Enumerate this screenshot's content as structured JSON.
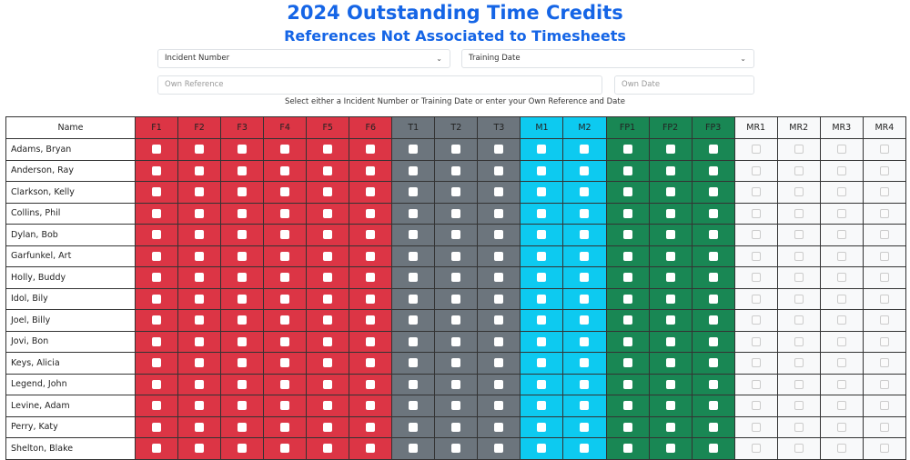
{
  "title": "2024 Outstanding Time Credits",
  "subtitle": "References Not Associated to Timesheets",
  "controls": {
    "incident": "Incident Number",
    "training": "Training Date",
    "own_ref_placeholder": "Own Reference",
    "own_date_placeholder": "Own Date",
    "hint": "Select either a Incident Number or Training Date or enter your Own Reference and Date"
  },
  "table": {
    "name_header": "Name",
    "groups": [
      {
        "color": "#dc3545",
        "columns": [
          "F1",
          "F2",
          "F3",
          "F4",
          "F5",
          "F6"
        ]
      },
      {
        "color": "#6c757d",
        "columns": [
          "T1",
          "T2",
          "T3"
        ]
      },
      {
        "color": "#0dcaf0",
        "columns": [
          "M1",
          "M2"
        ]
      },
      {
        "color": "#198754",
        "columns": [
          "FP1",
          "FP2",
          "FP3"
        ]
      },
      {
        "color": "#f8f9fa",
        "columns": [
          "MR1",
          "MR2",
          "MR3",
          "MR4"
        ]
      }
    ],
    "rows": [
      "Adams, Bryan",
      "Anderson, Ray",
      "Clarkson, Kelly",
      "Collins, Phil",
      "Dylan, Bob",
      "Garfunkel, Art",
      "Holly, Buddy",
      "Idol, Bily",
      "Joel, Billy",
      "Jovi, Bon",
      "Keys, Alicia",
      "Legend, John",
      "Levine, Adam",
      "Perry, Katy",
      "Shelton, Blake"
    ]
  }
}
